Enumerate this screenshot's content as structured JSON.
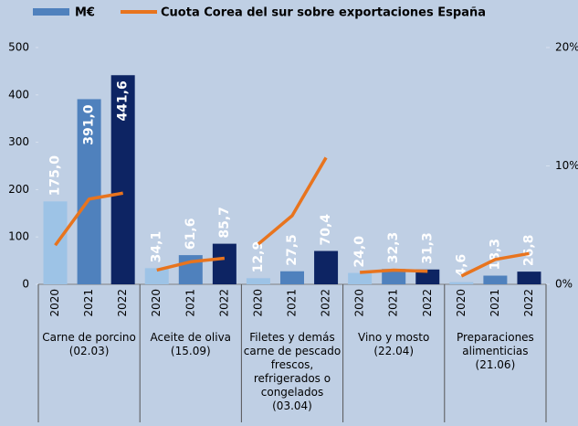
{
  "chart_data": {
    "type": "bar",
    "groups": [
      "Carne de porcino\n(02.03)",
      "Aceite de  oliva\n(15.09)",
      "Filetes y demás\ncarne de pescado\nfrescos,\nrefrigerados o\ncongelados\n(03.04)",
      "Vino y mosto\n(22.04)",
      "Preparaciones\nalimenticias\n(21.06)"
    ],
    "categories": [
      "2020",
      "2021",
      "2022",
      "2020",
      "2021",
      "2022",
      "2020",
      "2021",
      "2022",
      "2020",
      "2021",
      "2022",
      "2020",
      "2021",
      "2022"
    ],
    "series": [
      {
        "name": "M€",
        "type": "bar",
        "color": "#4f81bd",
        "year_colors": [
          "#9dc3e6",
          "#4f81bd",
          "#0d2463"
        ],
        "values": [
          175.0,
          391.0,
          441.6,
          34.1,
          61.6,
          85.7,
          12.9,
          27.5,
          70.4,
          24.0,
          32.3,
          31.3,
          4.6,
          18.3,
          26.8
        ],
        "value_labels": [
          "175,0",
          "391,0",
          "441,6",
          "34,1",
          "61,6",
          "85,7",
          "12,9",
          "27,5",
          "70,4",
          "24,0",
          "32,3",
          "31,3",
          "4,6",
          "18,3",
          "26,8"
        ]
      },
      {
        "name": "Cuota Corea del sur sobre exportaciones España",
        "type": "line",
        "axis": "y2",
        "color": "#e8741e",
        "values": [
          3.3,
          7.2,
          7.7,
          1.2,
          1.9,
          2.2,
          3.4,
          5.8,
          10.7,
          1.0,
          1.2,
          1.1,
          0.7,
          2.1,
          2.6
        ]
      }
    ],
    "ylim": [
      0,
      500
    ],
    "yticks": [
      0,
      100,
      200,
      300,
      400,
      500
    ],
    "y2lim": [
      0,
      20
    ],
    "y2ticks": [
      {
        "value": 0,
        "label": "0%"
      },
      {
        "value": 10,
        "label": "10%"
      },
      {
        "value": 20,
        "label": "20%"
      }
    ],
    "grid": false
  }
}
